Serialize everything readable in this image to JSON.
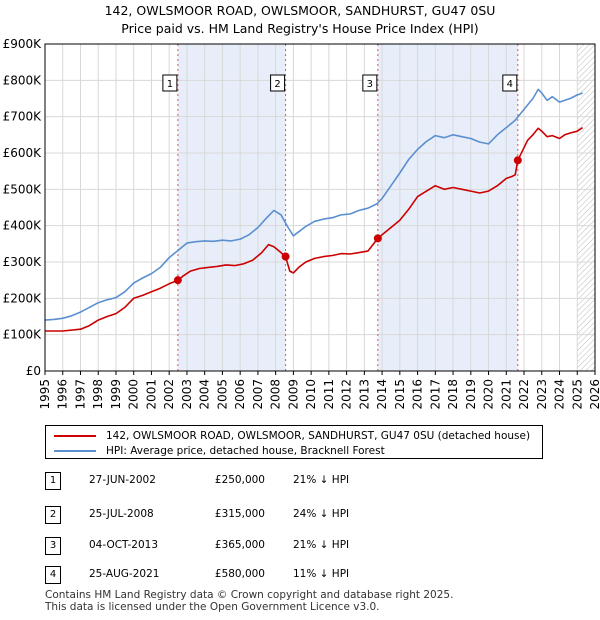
{
  "header": {
    "title": "142, OWLSMOOR ROAD, OWLSMOOR, SANDHURST, GU47 0SU",
    "subtitle": "Price paid vs. HM Land Registry's House Price Index (HPI)"
  },
  "chart_data": {
    "type": "line",
    "title": "142, OWLSMOOR ROAD, OWLSMOOR, SANDHURST, GU47 0SU",
    "subtitle": "Price paid vs. HM Land Registry's House Price Index (HPI)",
    "xlim": [
      1995,
      2026
    ],
    "ylim": [
      0,
      900000
    ],
    "y_ticks": [
      {
        "value": 0,
        "label": "£0"
      },
      {
        "value": 100000,
        "label": "£100K"
      },
      {
        "value": 200000,
        "label": "£200K"
      },
      {
        "value": 300000,
        "label": "£300K"
      },
      {
        "value": 400000,
        "label": "£400K"
      },
      {
        "value": 500000,
        "label": "£500K"
      },
      {
        "value": 600000,
        "label": "£600K"
      },
      {
        "value": 700000,
        "label": "£700K"
      },
      {
        "value": 800000,
        "label": "£800K"
      },
      {
        "value": 900000,
        "label": "£900K"
      }
    ],
    "x_ticks": [
      "1995",
      "1996",
      "1997",
      "1998",
      "1999",
      "2000",
      "2001",
      "2002",
      "2003",
      "2004",
      "2005",
      "2006",
      "2007",
      "2008",
      "2009",
      "2010",
      "2011",
      "2012",
      "2013",
      "2014",
      "2015",
      "2016",
      "2017",
      "2018",
      "2019",
      "2020",
      "2021",
      "2022",
      "2023",
      "2024",
      "2025",
      "2026"
    ],
    "grid": true,
    "series": [
      {
        "name": "142, OWLSMOOR ROAD, OWLSMOOR, SANDHURST, GU47 0SU (detached house)",
        "color": "#cc0000",
        "x": [
          1995.0,
          1996.0,
          1997.0,
          1997.5,
          1998.0,
          1998.5,
          1999.0,
          1999.5,
          2000.0,
          2000.5,
          2001.0,
          2001.5,
          2002.0,
          2002.49,
          2002.8,
          2003.2,
          2003.7,
          2004.2,
          2004.7,
          2005.2,
          2005.7,
          2006.2,
          2006.7,
          2007.2,
          2007.6,
          2007.9,
          2008.2,
          2008.56,
          2008.8,
          2009.0,
          2009.3,
          2009.7,
          2010.2,
          2010.7,
          2011.2,
          2011.7,
          2012.2,
          2012.7,
          2013.2,
          2013.76,
          2014.0,
          2014.5,
          2015.0,
          2015.5,
          2016.0,
          2016.5,
          2017.0,
          2017.5,
          2018.0,
          2018.5,
          2019.0,
          2019.5,
          2020.0,
          2020.5,
          2021.0,
          2021.3,
          2021.5,
          2021.65,
          2021.9,
          2022.2,
          2022.5,
          2022.8,
          2023.0,
          2023.3,
          2023.6,
          2024.0,
          2024.3,
          2024.6,
          2025.0,
          2025.3
        ],
        "values": [
          110000,
          110000,
          115000,
          125000,
          140000,
          150000,
          158000,
          175000,
          200000,
          208000,
          218000,
          228000,
          240000,
          250000,
          262000,
          275000,
          282000,
          285000,
          288000,
          292000,
          290000,
          295000,
          305000,
          325000,
          348000,
          342000,
          330000,
          315000,
          275000,
          270000,
          285000,
          300000,
          310000,
          315000,
          318000,
          323000,
          322000,
          326000,
          330000,
          365000,
          375000,
          395000,
          415000,
          445000,
          480000,
          495000,
          510000,
          500000,
          505000,
          500000,
          495000,
          490000,
          495000,
          510000,
          530000,
          535000,
          540000,
          580000,
          605000,
          635000,
          650000,
          668000,
          660000,
          645000,
          648000,
          640000,
          650000,
          655000,
          660000,
          670000
        ]
      },
      {
        "name": "HPI: Average price, detached house, Bracknell Forest",
        "color": "#5b8fd0",
        "x": [
          1995.0,
          1995.5,
          1996.0,
          1996.5,
          1997.0,
          1997.5,
          1998.0,
          1998.5,
          1999.0,
          1999.5,
          2000.0,
          2000.5,
          2001.0,
          2001.5,
          2002.0,
          2002.5,
          2003.0,
          2003.5,
          2004.0,
          2004.5,
          2005.0,
          2005.5,
          2006.0,
          2006.5,
          2007.0,
          2007.5,
          2007.9,
          2008.3,
          2008.7,
          2009.0,
          2009.3,
          2009.7,
          2010.2,
          2010.7,
          2011.2,
          2011.7,
          2012.2,
          2012.7,
          2013.2,
          2013.7,
          2014.0,
          2014.5,
          2015.0,
          2015.5,
          2016.0,
          2016.5,
          2017.0,
          2017.5,
          2018.0,
          2018.5,
          2019.0,
          2019.5,
          2020.0,
          2020.5,
          2021.0,
          2021.5,
          2022.0,
          2022.5,
          2022.8,
          2023.0,
          2023.3,
          2023.6,
          2024.0,
          2024.3,
          2024.6,
          2025.0,
          2025.3
        ],
        "values": [
          140000,
          142000,
          145000,
          152000,
          162000,
          175000,
          188000,
          196000,
          202000,
          218000,
          242000,
          256000,
          268000,
          285000,
          312000,
          332000,
          352000,
          356000,
          358000,
          357000,
          360000,
          358000,
          363000,
          375000,
          395000,
          422000,
          442000,
          430000,
          395000,
          372000,
          383000,
          398000,
          412000,
          418000,
          422000,
          430000,
          432000,
          442000,
          448000,
          460000,
          475000,
          510000,
          545000,
          582000,
          610000,
          632000,
          648000,
          642000,
          650000,
          645000,
          640000,
          630000,
          625000,
          650000,
          670000,
          690000,
          720000,
          750000,
          775000,
          765000,
          745000,
          755000,
          740000,
          745000,
          750000,
          760000,
          765000
        ]
      }
    ],
    "sales": [
      {
        "num": "1",
        "x": 2002.49,
        "price": 250000,
        "date": "27-JUN-2002",
        "price_label": "£250,000",
        "hpi_label": "21% ↓ HPI"
      },
      {
        "num": "2",
        "x": 2008.56,
        "price": 315000,
        "date": "25-JUL-2008",
        "price_label": "£315,000",
        "hpi_label": "24% ↓ HPI"
      },
      {
        "num": "3",
        "x": 2013.76,
        "price": 365000,
        "date": "04-OCT-2013",
        "price_label": "£365,000",
        "hpi_label": "21% ↓ HPI"
      },
      {
        "num": "4",
        "x": 2021.65,
        "price": 580000,
        "date": "25-AUG-2021",
        "price_label": "£580,000",
        "hpi_label": "11% ↓ HPI"
      }
    ],
    "shaded_spans": [
      [
        2002.49,
        2008.56
      ],
      [
        2013.76,
        2021.65
      ]
    ],
    "forecast_from": 2025.0
  },
  "legend": {
    "property_label": "142, OWLSMOOR ROAD, OWLSMOOR, SANDHURST, GU47 0SU (detached house)",
    "hpi_label": "HPI: Average price, detached house, Bracknell Forest",
    "property_color": "#cc0000",
    "hpi_color": "#5b8fd0"
  },
  "sales_table": [
    {
      "num": "1",
      "date": "27-JUN-2002",
      "price": "£250,000",
      "hpi": "21% ↓ HPI"
    },
    {
      "num": "2",
      "date": "25-JUL-2008",
      "price": "£315,000",
      "hpi": "24% ↓ HPI"
    },
    {
      "num": "3",
      "date": "04-OCT-2013",
      "price": "£365,000",
      "hpi": "21% ↓ HPI"
    },
    {
      "num": "4",
      "date": "25-AUG-2021",
      "price": "£580,000",
      "hpi": "11% ↓ HPI"
    }
  ],
  "footer": {
    "line1": "Contains HM Land Registry data © Crown copyright and database right 2025.",
    "line2": "This data is licensed under the Open Government Licence v3.0."
  }
}
